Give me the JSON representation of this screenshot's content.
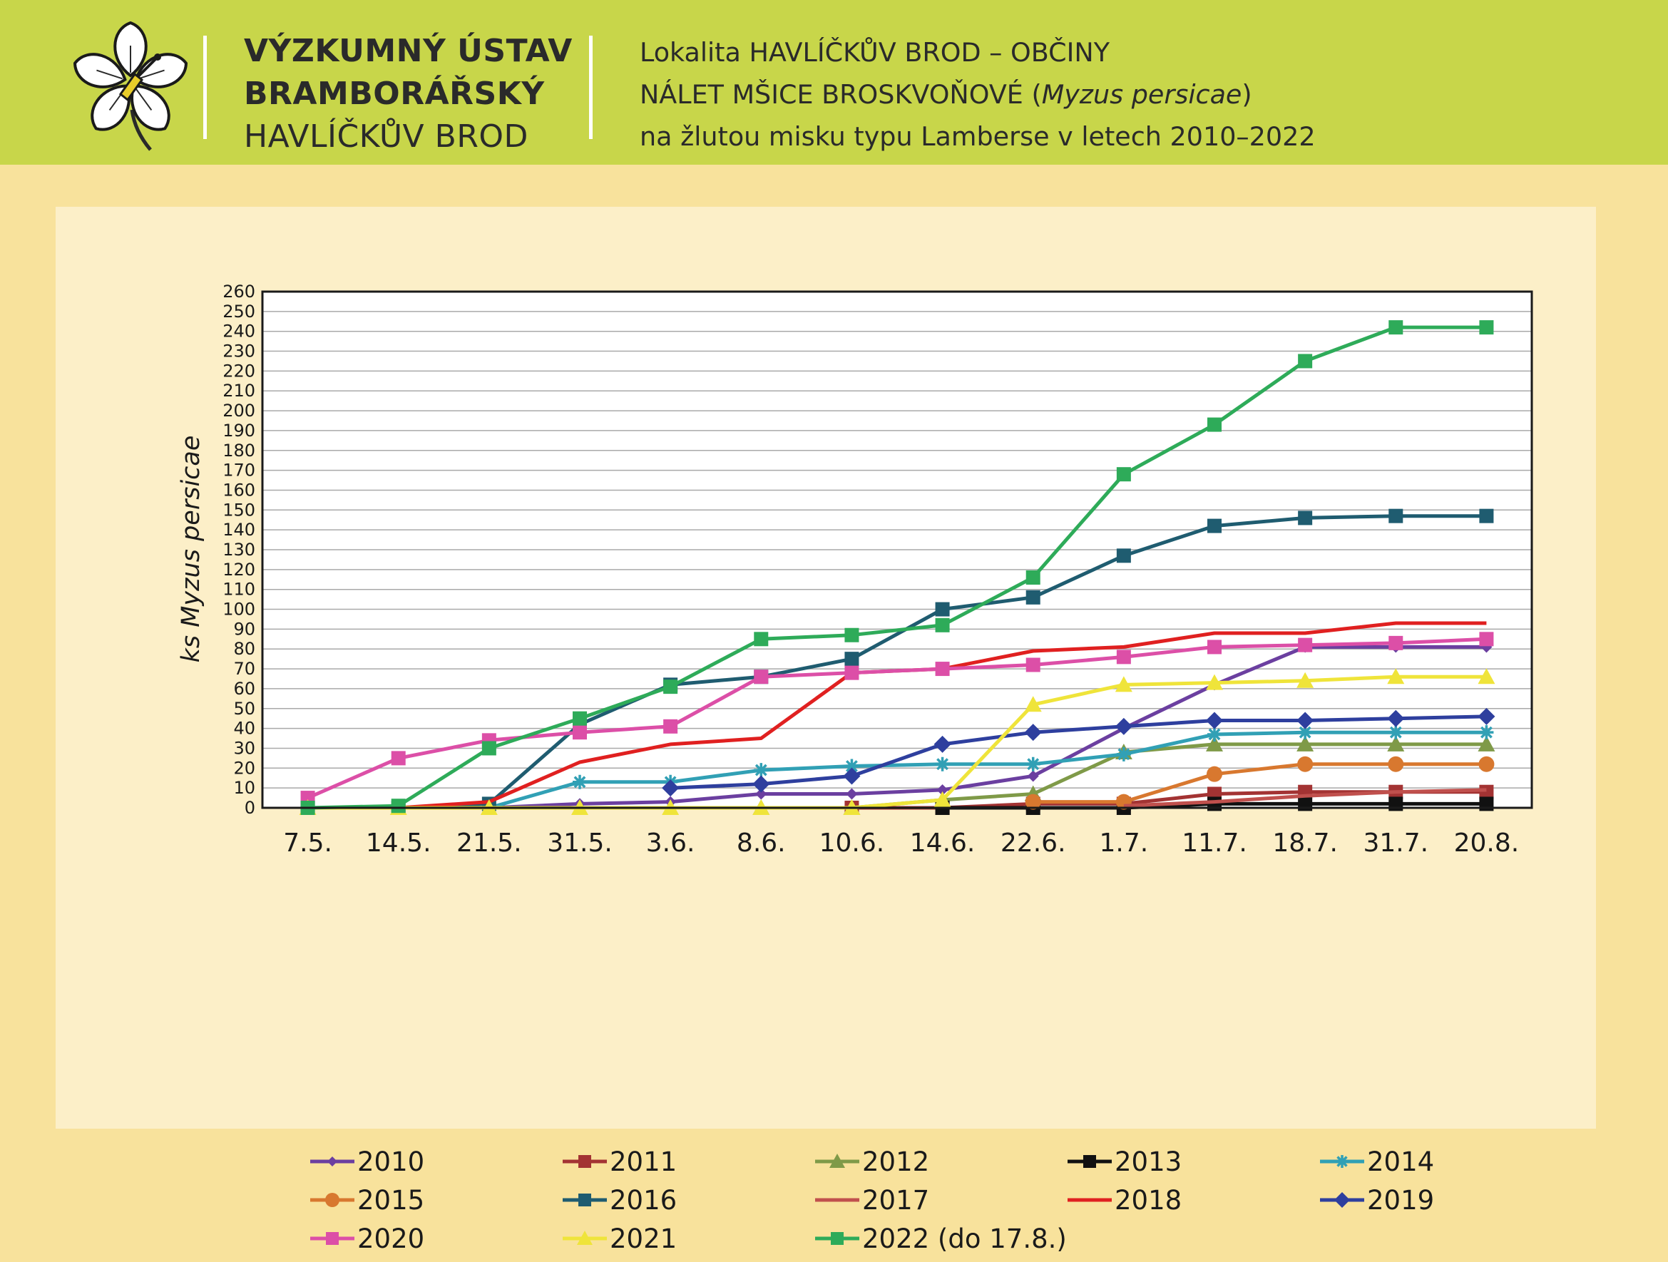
{
  "header": {
    "institute": [
      "VÝZKUMNÝ ÚSTAV",
      "BRAMBORÁŘSKÝ",
      "HAVLÍČKŮV BROD"
    ],
    "title_line1": "Lokalita HAVLÍČKŮV BROD – OBČINY",
    "title_line2_prefix": "NÁLET MŠICE BROSKVOŇOVÉ (",
    "title_line2_italic": "Myzus persicae",
    "title_line2_suffix": ")",
    "title_line3": "na žlutou misku typu Lamberse v letech 2010–2022"
  },
  "chart_data": {
    "type": "line",
    "xlabel": "",
    "ylabel": "ks Myzus persicae",
    "ylim": [
      0,
      260
    ],
    "y_step": 10,
    "grid": true,
    "legend_position": "bottom",
    "categories": [
      "7.5.",
      "14.5.",
      "21.5.",
      "31.5.",
      "3.6.",
      "8.6.",
      "10.6.",
      "14.6.",
      "22.6.",
      "1.7.",
      "11.7.",
      "18.7.",
      "31.7.",
      "20.8."
    ],
    "series": [
      {
        "name": "2010",
        "color": "#6b3fa0",
        "marker": "diamond-small",
        "values": [
          0,
          0,
          0,
          2,
          3,
          7,
          7,
          9,
          16,
          40,
          62,
          81,
          81,
          81
        ]
      },
      {
        "name": "2011",
        "color": "#a33333",
        "marker": "square",
        "values": [
          null,
          null,
          null,
          null,
          null,
          null,
          0,
          0,
          2,
          2,
          7,
          8,
          8,
          8
        ]
      },
      {
        "name": "2012",
        "color": "#7f9a48",
        "marker": "triangle",
        "values": [
          null,
          null,
          null,
          null,
          null,
          0,
          0,
          4,
          7,
          28,
          32,
          32,
          32,
          32
        ]
      },
      {
        "name": "2013",
        "color": "#111111",
        "marker": "square",
        "values": [
          null,
          null,
          null,
          null,
          null,
          null,
          null,
          0,
          0,
          0,
          2,
          2,
          2,
          2
        ]
      },
      {
        "name": "2014",
        "color": "#31a0b5",
        "marker": "asterisk",
        "values": [
          0,
          0,
          0,
          13,
          13,
          19,
          21,
          22,
          22,
          27,
          37,
          38,
          38,
          38
        ]
      },
      {
        "name": "2015",
        "color": "#d8782f",
        "marker": "circle",
        "values": [
          null,
          null,
          null,
          null,
          null,
          null,
          null,
          null,
          3,
          3,
          17,
          22,
          22,
          22
        ]
      },
      {
        "name": "2016",
        "color": "#1f5c70",
        "marker": "square",
        "values": [
          0,
          0,
          2,
          42,
          62,
          66,
          75,
          100,
          106,
          127,
          142,
          146,
          147,
          147
        ]
      },
      {
        "name": "2017",
        "color": "#c0504d",
        "marker": "none",
        "values": [
          null,
          null,
          null,
          null,
          null,
          null,
          null,
          null,
          null,
          1,
          3,
          6,
          8,
          9
        ]
      },
      {
        "name": "2018",
        "color": "#e02020",
        "marker": "none",
        "values": [
          0,
          0,
          3,
          23,
          32,
          35,
          68,
          70,
          79,
          81,
          88,
          88,
          93,
          93
        ]
      },
      {
        "name": "2019",
        "color": "#2e3f9e",
        "marker": "diamond",
        "values": [
          null,
          null,
          null,
          null,
          10,
          12,
          16,
          32,
          38,
          41,
          44,
          44,
          45,
          46
        ]
      },
      {
        "name": "2020",
        "color": "#dc4fa7",
        "marker": "square",
        "values": [
          5,
          25,
          34,
          38,
          41,
          66,
          68,
          70,
          72,
          76,
          81,
          82,
          83,
          85
        ]
      },
      {
        "name": "2021",
        "color": "#efe43a",
        "marker": "triangle",
        "values": [
          0,
          0,
          0,
          0,
          0,
          0,
          0,
          4,
          52,
          62,
          63,
          64,
          66,
          66
        ]
      },
      {
        "name": "2022 (do 17.8.)",
        "color": "#2eab59",
        "marker": "square",
        "values": [
          0,
          1,
          30,
          45,
          61,
          85,
          87,
          92,
          116,
          168,
          193,
          225,
          242,
          242
        ]
      }
    ]
  }
}
